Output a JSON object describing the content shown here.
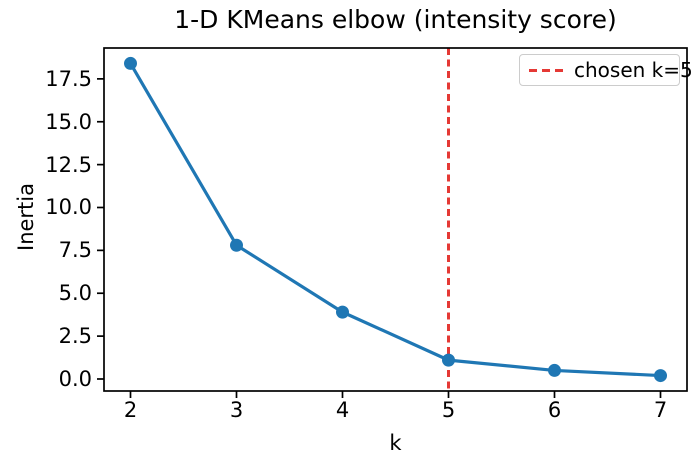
{
  "figure": {
    "background": "#ffffff"
  },
  "chart_data": {
    "type": "line",
    "title": "1-D KMeans elbow (intensity score)",
    "xlabel": "k",
    "ylabel": "Inertia",
    "x": [
      2,
      3,
      4,
      5,
      6,
      7
    ],
    "series": [
      {
        "name": "inertia",
        "values": [
          18.4,
          7.8,
          3.9,
          1.1,
          0.5,
          0.2
        ],
        "color": "#1f77b4",
        "marker": "circle",
        "line_style": "solid"
      }
    ],
    "vline": {
      "x": 5,
      "color": "#e53935",
      "style": "dashed",
      "label": "chosen k=5"
    },
    "xlim": [
      1.75,
      7.25
    ],
    "ylim": [
      -0.7,
      19.3
    ],
    "xticks": [
      "2",
      "3",
      "4",
      "5",
      "6",
      "7"
    ],
    "xtick_values": [
      2,
      3,
      4,
      5,
      6,
      7
    ],
    "yticks": [
      "0.0",
      "2.5",
      "5.0",
      "7.5",
      "10.0",
      "12.5",
      "15.0",
      "17.5"
    ],
    "ytick_values": [
      0,
      2.5,
      5,
      7.5,
      10,
      12.5,
      15,
      17.5
    ],
    "grid": false,
    "axis_color": "#000000",
    "legend": {
      "position": "upper right",
      "border_color": "#cccccc",
      "entries": [
        {
          "label": "chosen k=5",
          "color": "#e53935",
          "style": "dashed"
        }
      ]
    }
  }
}
